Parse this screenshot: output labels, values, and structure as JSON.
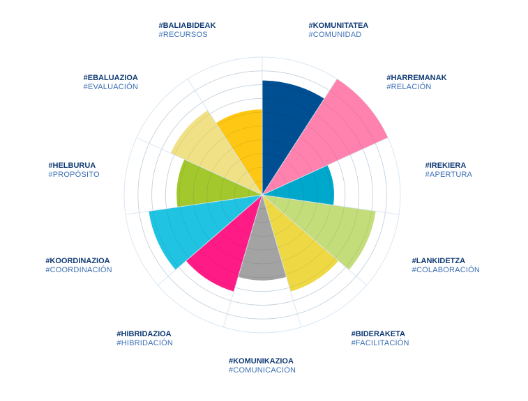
{
  "chart_data": {
    "type": "polar-area",
    "grid": true,
    "rlim": [
      0,
      10
    ],
    "ring_count": 10,
    "categories": [
      {
        "eu": "#KOMUNITATEA",
        "es": "#COMUNIDAD",
        "value": 8.3,
        "color": "#004f93"
      },
      {
        "eu": "#HARREMANAK",
        "es": "#RELACIÓN",
        "value": 10,
        "color": "#ff82ae"
      },
      {
        "eu": "#IREKIERA",
        "es": "#APERTURA",
        "value": 5.2,
        "color": "#00a8cb"
      },
      {
        "eu": "#LANKIDETZA",
        "es": "#COLABORACIÓN",
        "value": 8.3,
        "color": "#c3dd7b"
      },
      {
        "eu": "#BIDERAKETA",
        "es": "#FACILITACIÓN",
        "value": 7.3,
        "color": "#eed944"
      },
      {
        "eu": "#KOMUNIKAZIOA",
        "es": "#COMUNICACIÓN",
        "value": 6.2,
        "color": "#a3a3a3"
      },
      {
        "eu": "#HIBRIDAZIOA",
        "es": "#HIBRIDACIÓN",
        "value": 7.3,
        "color": "#ff1b85"
      },
      {
        "eu": "#KOORDINAZIOA",
        "es": "#COORDINACIÓN",
        "value": 8.3,
        "color": "#20c4e2"
      },
      {
        "eu": "#HELBURUA",
        "es": "#PROPÓSITO",
        "value": 6.2,
        "color": "#a2c82e"
      },
      {
        "eu": "#EBALUAZIOA",
        "es": "#EVALUACIÓN",
        "value": 7.3,
        "color": "#f0e186"
      },
      {
        "eu": "#BALIABIDEAK",
        "es": "#RECURSOS",
        "value": 6.2,
        "color": "#fdc713"
      }
    ]
  }
}
